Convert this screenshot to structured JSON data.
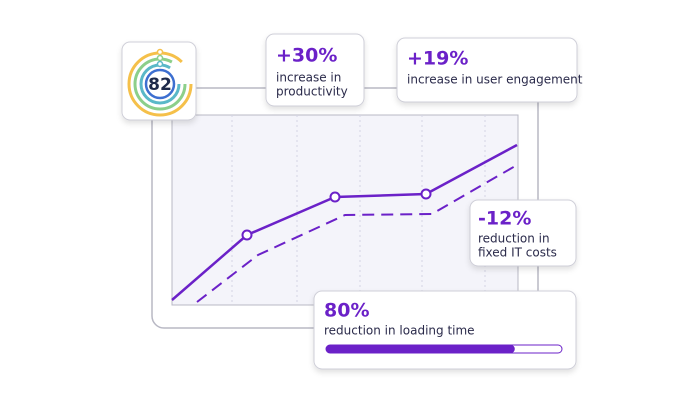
{
  "score": "82",
  "cards": [
    {
      "stat": "+30%",
      "lines": [
        "increase in",
        "productivity"
      ]
    },
    {
      "stat": "+19%",
      "lines": [
        "increase in user engagement"
      ]
    },
    {
      "stat": "-12%",
      "lines": [
        "reduction in",
        "fixed IT costs"
      ]
    }
  ],
  "progress": {
    "stat": {
      "value": 80,
      "label": "80%"
    },
    "lines": [
      "reduction in loading time"
    ]
  }
}
